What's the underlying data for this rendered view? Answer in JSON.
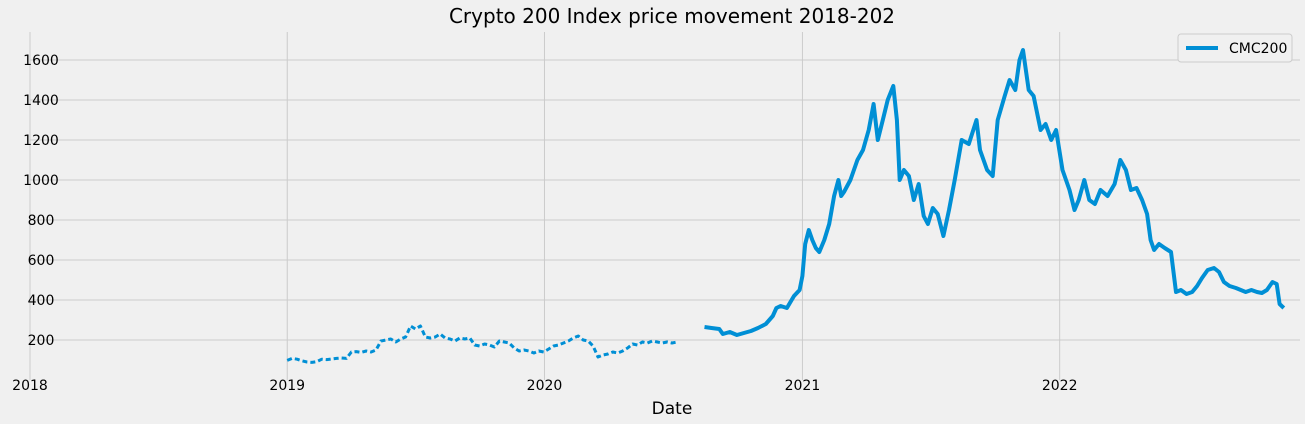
{
  "chart_data": {
    "type": "line",
    "title": "Crypto 200 Index price movement 2018-202",
    "xlabel": "Date",
    "ylabel": "",
    "xlim": [
      "2018-01-01",
      "2022-12-08"
    ],
    "ylim": [
      0,
      1740
    ],
    "x_ticks": [
      "2018",
      "2019",
      "2020",
      "2021",
      "2022"
    ],
    "y_ticks": [
      200,
      400,
      600,
      800,
      1000,
      1200,
      1400,
      1600
    ],
    "grid": true,
    "legend_position": "top-right",
    "line_color": "#008fd5",
    "series": [
      {
        "name": "CMC200",
        "segments": [
          [
            [
              "2019-01-01",
              98
            ],
            [
              "2019-01-08",
              108
            ],
            [
              "2019-01-15",
              104
            ],
            [
              "2019-01-22",
              96
            ],
            [
              "2019-01-29",
              90
            ],
            [
              "2019-02-05",
              88
            ],
            [
              "2019-02-12",
              92
            ],
            [
              "2019-02-19",
              104
            ],
            [
              "2019-02-26",
              102
            ],
            [
              "2019-03-05",
              105
            ],
            [
              "2019-03-12",
              108
            ],
            [
              "2019-03-19",
              110
            ],
            [
              "2019-03-26",
              108
            ],
            [
              "2019-04-02",
              140
            ],
            [
              "2019-04-09",
              142
            ],
            [
              "2019-04-16",
              138
            ],
            [
              "2019-04-23",
              145
            ],
            [
              "2019-04-30",
              140
            ],
            [
              "2019-05-07",
              150
            ],
            [
              "2019-05-14",
              195
            ],
            [
              "2019-05-21",
              200
            ],
            [
              "2019-05-28",
              205
            ],
            [
              "2019-06-04",
              190
            ],
            [
              "2019-06-11",
              205
            ],
            [
              "2019-06-18",
              215
            ],
            [
              "2019-06-25",
              270
            ],
            [
              "2019-07-02",
              255
            ],
            [
              "2019-07-09",
              270
            ],
            [
              "2019-07-16",
              215
            ],
            [
              "2019-07-23",
              210
            ],
            [
              "2019-07-30",
              215
            ],
            [
              "2019-08-06",
              230
            ],
            [
              "2019-08-13",
              210
            ],
            [
              "2019-08-20",
              205
            ],
            [
              "2019-08-27",
              195
            ],
            [
              "2019-09-03",
              210
            ],
            [
              "2019-09-10",
              205
            ],
            [
              "2019-09-17",
              210
            ],
            [
              "2019-09-24",
              175
            ],
            [
              "2019-10-01",
              170
            ],
            [
              "2019-10-08",
              180
            ],
            [
              "2019-10-15",
              175
            ],
            [
              "2019-10-22",
              165
            ],
            [
              "2019-10-29",
              195
            ],
            [
              "2019-11-05",
              190
            ],
            [
              "2019-11-12",
              185
            ],
            [
              "2019-11-19",
              160
            ],
            [
              "2019-11-26",
              145
            ],
            [
              "2019-12-03",
              150
            ],
            [
              "2019-12-10",
              145
            ],
            [
              "2019-12-17",
              135
            ],
            [
              "2019-12-24",
              145
            ],
            [
              "2019-12-31",
              140
            ],
            [
              "2020-01-07",
              155
            ],
            [
              "2020-01-14",
              170
            ],
            [
              "2020-01-21",
              175
            ],
            [
              "2020-01-28",
              185
            ],
            [
              "2020-02-04",
              195
            ],
            [
              "2020-02-11",
              210
            ],
            [
              "2020-02-18",
              220
            ],
            [
              "2020-02-25",
              200
            ],
            [
              "2020-03-03",
              195
            ],
            [
              "2020-03-10",
              170
            ],
            [
              "2020-03-17",
              115
            ],
            [
              "2020-03-24",
              125
            ],
            [
              "2020-03-31",
              130
            ],
            [
              "2020-04-07",
              140
            ],
            [
              "2020-04-14",
              135
            ],
            [
              "2020-04-21",
              145
            ],
            [
              "2020-04-28",
              160
            ],
            [
              "2020-05-05",
              180
            ],
            [
              "2020-05-12",
              175
            ],
            [
              "2020-05-19",
              190
            ],
            [
              "2020-05-26",
              185
            ],
            [
              "2020-06-02",
              195
            ],
            [
              "2020-06-09",
              190
            ],
            [
              "2020-06-16",
              185
            ],
            [
              "2020-06-23",
              190
            ],
            [
              "2020-06-30",
              185
            ],
            [
              "2020-07-07",
              190
            ]
          ],
          [
            [
              "2020-08-15",
              265
            ],
            [
              "2020-08-25",
              260
            ],
            [
              "2020-09-05",
              255
            ],
            [
              "2020-09-10",
              230
            ],
            [
              "2020-09-20",
              240
            ],
            [
              "2020-09-30",
              225
            ],
            [
              "2020-10-10",
              235
            ],
            [
              "2020-10-20",
              245
            ],
            [
              "2020-10-30",
              260
            ],
            [
              "2020-11-10",
              280
            ],
            [
              "2020-11-20",
              320
            ],
            [
              "2020-11-25",
              360
            ],
            [
              "2020-12-01",
              370
            ],
            [
              "2020-12-10",
              360
            ],
            [
              "2020-12-20",
              420
            ],
            [
              "2020-12-28",
              450
            ],
            [
              "2021-01-01",
              520
            ],
            [
              "2021-01-05",
              680
            ],
            [
              "2021-01-10",
              750
            ],
            [
              "2021-01-15",
              700
            ],
            [
              "2021-01-20",
              660
            ],
            [
              "2021-01-25",
              640
            ],
            [
              "2021-02-01",
              700
            ],
            [
              "2021-02-08",
              780
            ],
            [
              "2021-02-15",
              920
            ],
            [
              "2021-02-21",
              1000
            ],
            [
              "2021-02-25",
              920
            ],
            [
              "2021-03-01",
              940
            ],
            [
              "2021-03-10",
              1000
            ],
            [
              "2021-03-15",
              1050
            ],
            [
              "2021-03-20",
              1100
            ],
            [
              "2021-03-28",
              1150
            ],
            [
              "2021-04-05",
              1250
            ],
            [
              "2021-04-12",
              1380
            ],
            [
              "2021-04-18",
              1200
            ],
            [
              "2021-04-25",
              1300
            ],
            [
              "2021-05-02",
              1400
            ],
            [
              "2021-05-10",
              1470
            ],
            [
              "2021-05-15",
              1300
            ],
            [
              "2021-05-19",
              1000
            ],
            [
              "2021-05-25",
              1050
            ],
            [
              "2021-06-01",
              1020
            ],
            [
              "2021-06-08",
              900
            ],
            [
              "2021-06-15",
              980
            ],
            [
              "2021-06-22",
              820
            ],
            [
              "2021-06-28",
              780
            ],
            [
              "2021-07-05",
              860
            ],
            [
              "2021-07-12",
              830
            ],
            [
              "2021-07-20",
              720
            ],
            [
              "2021-07-28",
              850
            ],
            [
              "2021-08-05",
              1000
            ],
            [
              "2021-08-15",
              1200
            ],
            [
              "2021-08-25",
              1180
            ],
            [
              "2021-09-05",
              1300
            ],
            [
              "2021-09-10",
              1150
            ],
            [
              "2021-09-20",
              1050
            ],
            [
              "2021-09-28",
              1020
            ],
            [
              "2021-10-05",
              1300
            ],
            [
              "2021-10-15",
              1420
            ],
            [
              "2021-10-22",
              1500
            ],
            [
              "2021-10-30",
              1450
            ],
            [
              "2021-11-05",
              1600
            ],
            [
              "2021-11-10",
              1650
            ],
            [
              "2021-11-18",
              1450
            ],
            [
              "2021-11-25",
              1420
            ],
            [
              "2021-12-05",
              1250
            ],
            [
              "2021-12-12",
              1280
            ],
            [
              "2021-12-20",
              1200
            ],
            [
              "2021-12-27",
              1250
            ],
            [
              "2022-01-05",
              1050
            ],
            [
              "2022-01-10",
              1000
            ],
            [
              "2022-01-15",
              950
            ],
            [
              "2022-01-22",
              850
            ],
            [
              "2022-01-28",
              900
            ],
            [
              "2022-02-05",
              1000
            ],
            [
              "2022-02-12",
              900
            ],
            [
              "2022-02-20",
              880
            ],
            [
              "2022-02-28",
              950
            ],
            [
              "2022-03-10",
              920
            ],
            [
              "2022-03-20",
              980
            ],
            [
              "2022-03-28",
              1100
            ],
            [
              "2022-04-05",
              1050
            ],
            [
              "2022-04-12",
              950
            ],
            [
              "2022-04-20",
              960
            ],
            [
              "2022-04-28",
              900
            ],
            [
              "2022-05-05",
              830
            ],
            [
              "2022-05-10",
              700
            ],
            [
              "2022-05-15",
              650
            ],
            [
              "2022-05-22",
              680
            ],
            [
              "2022-05-30",
              660
            ],
            [
              "2022-06-08",
              640
            ],
            [
              "2022-06-15",
              440
            ],
            [
              "2022-06-22",
              450
            ],
            [
              "2022-06-30",
              430
            ],
            [
              "2022-07-08",
              440
            ],
            [
              "2022-07-15",
              470
            ],
            [
              "2022-07-22",
              510
            ],
            [
              "2022-07-30",
              550
            ],
            [
              "2022-08-08",
              560
            ],
            [
              "2022-08-15",
              540
            ],
            [
              "2022-08-22",
              490
            ],
            [
              "2022-08-30",
              470
            ],
            [
              "2022-09-08",
              460
            ],
            [
              "2022-09-15",
              450
            ],
            [
              "2022-09-22",
              440
            ],
            [
              "2022-09-30",
              450
            ],
            [
              "2022-10-08",
              440
            ],
            [
              "2022-10-15",
              435
            ],
            [
              "2022-10-22",
              450
            ],
            [
              "2022-10-30",
              490
            ],
            [
              "2022-11-05",
              480
            ],
            [
              "2022-11-09",
              380
            ],
            [
              "2022-11-15",
              360
            ]
          ]
        ]
      }
    ]
  }
}
